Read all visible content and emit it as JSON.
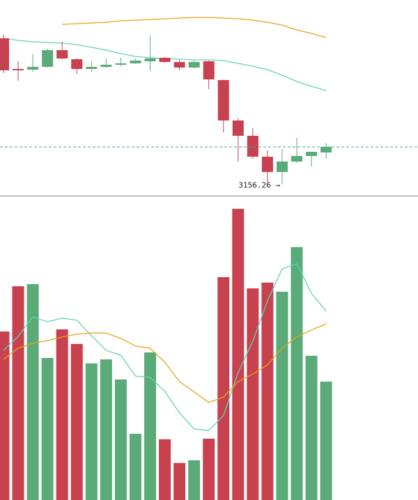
{
  "chart_data": [
    {
      "type": "candlestick",
      "open": [
        3468.1,
        3402.5,
        3401.1,
        3407.0,
        3442.8,
        3423.4,
        3402.5,
        3407.0,
        3411.5,
        3414.5,
        3418.9,
        3426.4,
        3417.4,
        3405.5,
        3418.9,
        3378.7,
        3292.3,
        3259.6,
        3214.9,
        3182.1,
        3204.5,
        3216.4,
        3223.8
      ],
      "high": [
        3475.5,
        3418.9,
        3433.8,
        3445.7,
        3460.6,
        3424.9,
        3418.9,
        3424.9,
        3426.4,
        3424.9,
        3474.0,
        3427.9,
        3421.9,
        3420.4,
        3420.4,
        3380.2,
        3296.8,
        3276.0,
        3228.3,
        3231.3,
        3255.1,
        3225.3,
        3244.7
      ],
      "low": [
        3393.6,
        3377.2,
        3396.6,
        3405.5,
        3423.4,
        3392.1,
        3396.6,
        3404.0,
        3408.5,
        3413.0,
        3398.1,
        3416.0,
        3399.6,
        3404.0,
        3359.4,
        3267.0,
        3204.5,
        3210.4,
        3160.0,
        3156.26,
        3201.5,
        3194.0,
        3210.4
      ],
      "close": [
        3399.6,
        3399.6,
        3407.0,
        3442.8,
        3424.9,
        3402.5,
        3407.0,
        3411.5,
        3414.5,
        3420.4,
        3424.9,
        3417.4,
        3405.5,
        3417.4,
        3380.2,
        3292.3,
        3259.6,
        3214.9,
        3182.1,
        3204.5,
        3216.4,
        3225.3,
        3235.7
      ],
      "low_labels": [
        null,
        null,
        null,
        null,
        null,
        null,
        null,
        null,
        null,
        null,
        null,
        null,
        null,
        null,
        null,
        null,
        null,
        null,
        null,
        "3156.26 →",
        null,
        null,
        null
      ],
      "up_color": "#5aab78",
      "down_color": "#c8414f",
      "ylim": [
        3130,
        3550
      ],
      "series": [
        {
          "color": "#5fd3b5",
          "values": [
            3468.1,
            3463.6,
            3460.6,
            3459.1,
            3457.7,
            3454.7,
            3448.7,
            3442.8,
            3435.3,
            3429.4,
            3426.4,
            3424.9,
            3423.4,
            3421.9,
            3421.9,
            3420.4,
            3414.5,
            3408.5,
            3401.1,
            3389.1,
            3375.7,
            3365.3,
            3356.4
          ]
        },
        {
          "color": "#e8a317",
          "values": [
            null,
            null,
            null,
            null,
            3497.9,
            3499.4,
            3500.9,
            3502.3,
            3505.3,
            3506.8,
            3508.3,
            3509.8,
            3511.3,
            3512.8,
            3512.8,
            3511.3,
            3509.8,
            3506.8,
            3502.3,
            3496.4,
            3486.0,
            3478.5,
            3469.6
          ]
        }
      ]
    },
    {
      "type": "volume",
      "values": [
        55.5,
        70.4,
        71.1,
        46.8,
        56.2,
        51.4,
        45.0,
        46.3,
        39.7,
        21.8,
        48.6,
        20.0,
        12.2,
        13.1,
        20.2,
        73.4,
        95.9,
        69.7,
        71.6,
        68.6,
        83.3,
        47.5,
        39.0
      ],
      "ylim": [
        0,
        100
      ],
      "series": [
        {
          "color": "#5fd3b5",
          "values": [
            49.3,
            53.9,
            60.3,
            58.7,
            59.9,
            59.2,
            54.1,
            49.3,
            47.7,
            40.8,
            40.4,
            35.8,
            28.7,
            23.4,
            22.9,
            27.8,
            42.0,
            52.3,
            65.6,
            76.1,
            77.8,
            68.1,
            62.2
          ]
        },
        {
          "color": "#e8a317",
          "values": [
            46.3,
            50.0,
            51.6,
            52.5,
            53.7,
            54.6,
            55.0,
            55.0,
            53.2,
            50.7,
            50.0,
            45.4,
            39.0,
            35.6,
            32.1,
            33.9,
            39.0,
            41.5,
            44.5,
            50.0,
            53.7,
            56.0,
            58.0
          ]
        }
      ]
    }
  ]
}
